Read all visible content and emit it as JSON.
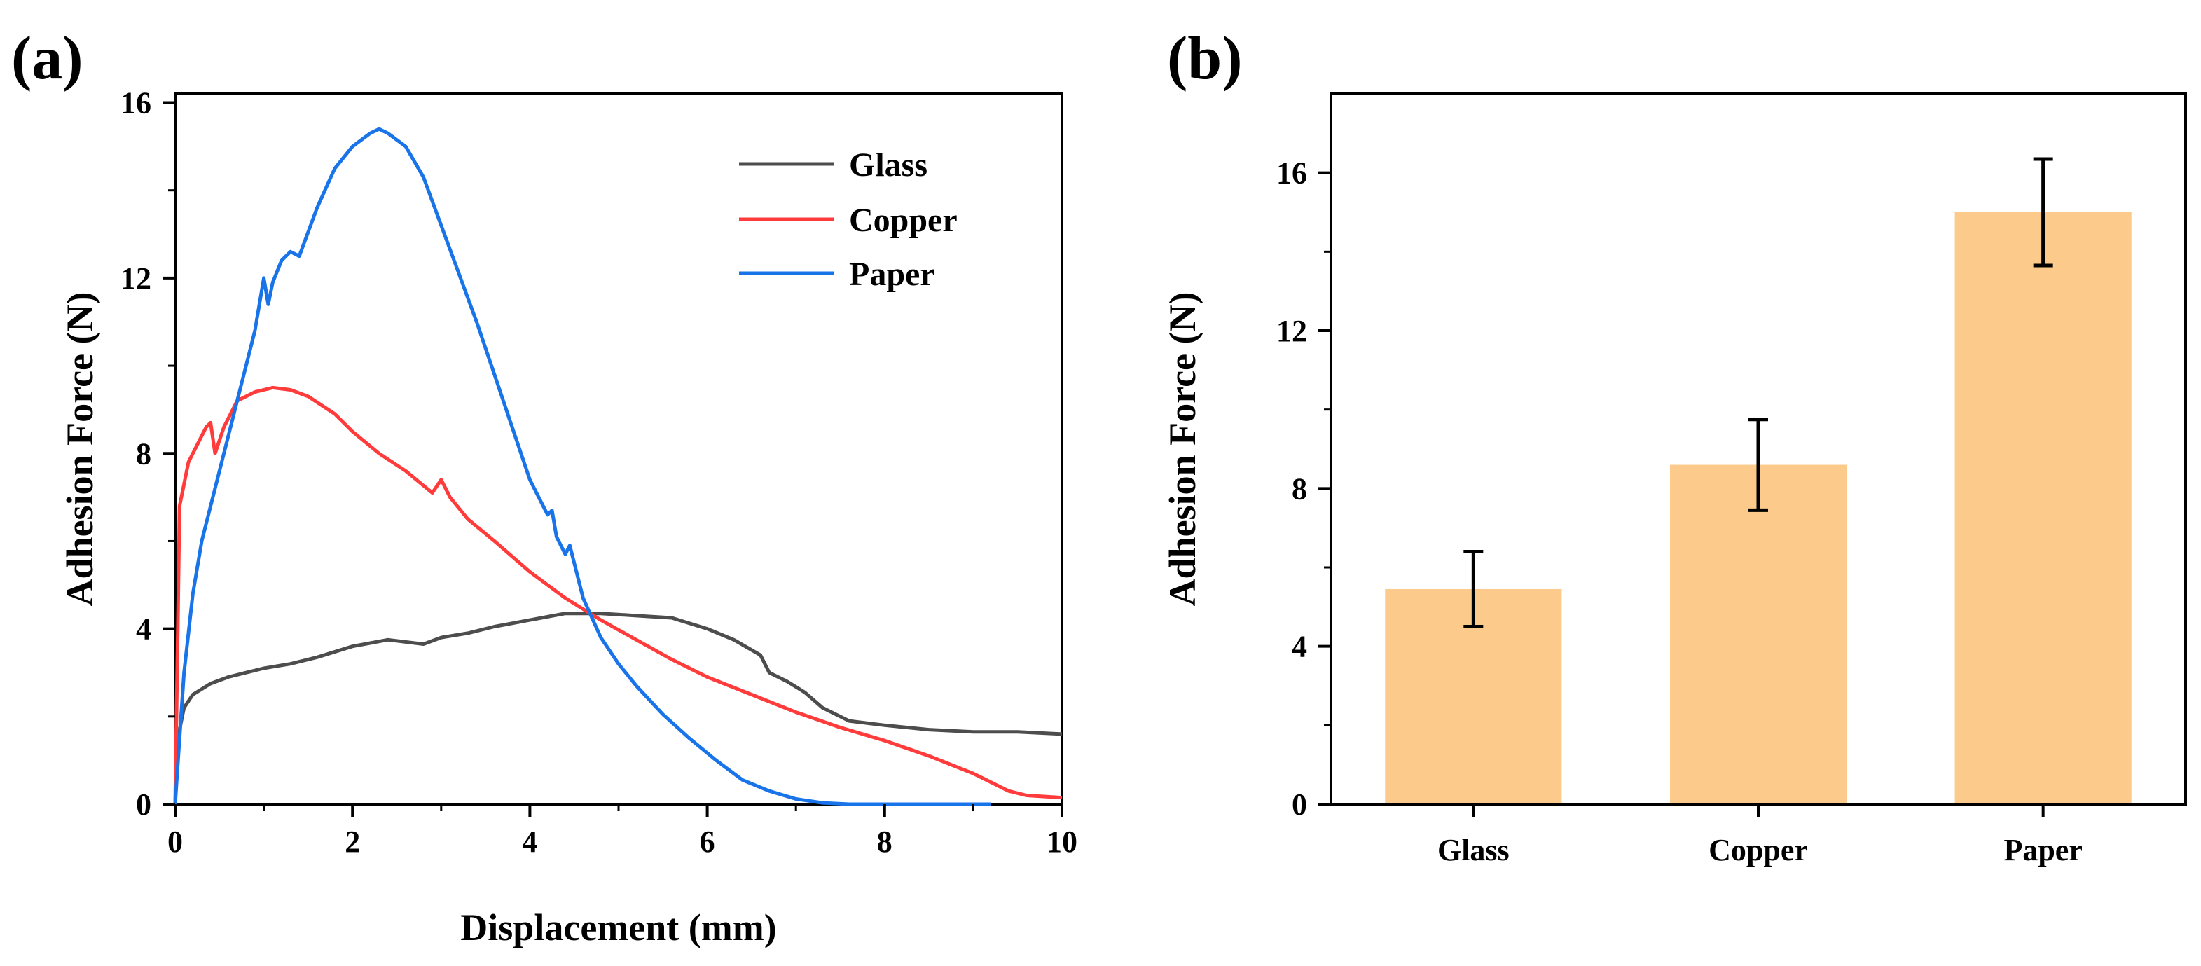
{
  "panels": {
    "a": {
      "label": "(a)"
    },
    "b": {
      "label": "(b)"
    }
  },
  "colors": {
    "glass": "#4d4d4d",
    "copper": "#ff3b3b",
    "paper": "#1874e8",
    "bar": "#fccb8c",
    "axis": "#000000"
  },
  "chart_data": [
    {
      "id": "a",
      "type": "line",
      "xlabel": "Displacement (mm)",
      "ylabel": "Adhesion Force (N)",
      "xlim": [
        0,
        10
      ],
      "ylim": [
        0,
        16.2
      ],
      "xticks": [
        0,
        2,
        4,
        6,
        8,
        10
      ],
      "yticks": [
        0,
        4,
        8,
        12,
        16
      ],
      "legend_position": "top-right",
      "series": [
        {
          "name": "Glass",
          "x": [
            0,
            0.02,
            0.05,
            0.1,
            0.2,
            0.4,
            0.6,
            0.8,
            1.0,
            1.3,
            1.6,
            2.0,
            2.4,
            2.8,
            3.0,
            3.3,
            3.6,
            4.0,
            4.4,
            4.8,
            5.2,
            5.6,
            6.0,
            6.3,
            6.6,
            6.7,
            6.9,
            7.1,
            7.3,
            7.6,
            8.0,
            8.5,
            9.0,
            9.5,
            10.0
          ],
          "y": [
            0,
            1.2,
            1.7,
            2.2,
            2.5,
            2.75,
            2.9,
            3.0,
            3.1,
            3.2,
            3.35,
            3.6,
            3.75,
            3.65,
            3.8,
            3.9,
            4.05,
            4.2,
            4.35,
            4.35,
            4.3,
            4.25,
            4.0,
            3.75,
            3.4,
            3.0,
            2.8,
            2.55,
            2.2,
            1.9,
            1.8,
            1.7,
            1.65,
            1.65,
            1.6
          ]
        },
        {
          "name": "Copper",
          "x": [
            0,
            0.03,
            0.05,
            0.1,
            0.15,
            0.25,
            0.35,
            0.4,
            0.45,
            0.55,
            0.7,
            0.9,
            1.1,
            1.3,
            1.5,
            1.8,
            2.0,
            2.3,
            2.6,
            2.9,
            3.0,
            3.1,
            3.3,
            3.6,
            4.0,
            4.4,
            4.8,
            5.2,
            5.6,
            6.0,
            6.5,
            7.0,
            7.5,
            8.0,
            8.5,
            9.0,
            9.4,
            9.6,
            10.0
          ],
          "y": [
            0,
            4.0,
            6.8,
            7.3,
            7.8,
            8.2,
            8.6,
            8.7,
            8.0,
            8.6,
            9.2,
            9.4,
            9.5,
            9.45,
            9.3,
            8.9,
            8.5,
            8.0,
            7.6,
            7.1,
            7.4,
            7.0,
            6.5,
            6.0,
            5.3,
            4.7,
            4.2,
            3.75,
            3.3,
            2.9,
            2.5,
            2.1,
            1.75,
            1.45,
            1.1,
            0.7,
            0.3,
            0.2,
            0.15
          ]
        },
        {
          "name": "Paper",
          "x": [
            0,
            0.05,
            0.1,
            0.2,
            0.3,
            0.5,
            0.7,
            0.9,
            1.0,
            1.05,
            1.1,
            1.2,
            1.3,
            1.4,
            1.6,
            1.8,
            2.0,
            2.2,
            2.3,
            2.4,
            2.6,
            2.8,
            3.0,
            3.2,
            3.4,
            3.6,
            3.8,
            4.0,
            4.2,
            4.25,
            4.3,
            4.4,
            4.45,
            4.6,
            4.8,
            5.0,
            5.2,
            5.5,
            5.8,
            6.1,
            6.4,
            6.7,
            7.0,
            7.3,
            7.6,
            7.8,
            8.5,
            9.2
          ],
          "y": [
            0,
            1.5,
            3.0,
            4.8,
            6.0,
            7.6,
            9.2,
            10.8,
            12.0,
            11.4,
            11.9,
            12.4,
            12.6,
            12.5,
            13.6,
            14.5,
            15.0,
            15.3,
            15.4,
            15.3,
            15.0,
            14.3,
            13.2,
            12.1,
            11.0,
            9.8,
            8.6,
            7.4,
            6.6,
            6.7,
            6.1,
            5.7,
            5.9,
            4.7,
            3.8,
            3.2,
            2.7,
            2.05,
            1.5,
            1.0,
            0.55,
            0.3,
            0.12,
            0.03,
            0.0,
            0.0,
            0.0,
            0.0
          ]
        }
      ]
    },
    {
      "id": "b",
      "type": "bar",
      "xlabel": "",
      "ylabel": "Adhesion Force (N)",
      "ylim": [
        0,
        18
      ],
      "yticks": [
        0,
        4,
        8,
        12,
        16
      ],
      "categories": [
        "Glass",
        "Copper",
        "Paper"
      ],
      "values": [
        5.45,
        8.6,
        15.0
      ],
      "errors": [
        0.95,
        1.15,
        1.35
      ]
    }
  ]
}
